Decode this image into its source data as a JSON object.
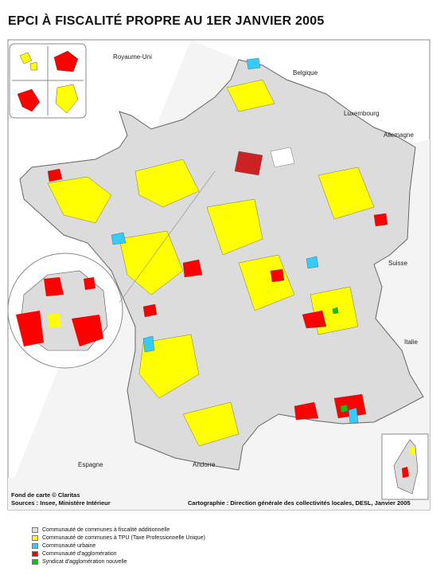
{
  "title": "EPCI À FISCALITÉ PROPRE AU 1ER JANVIER 2005",
  "map": {
    "labels": [
      "Royaume-Uni",
      "Belgique",
      "Luxembourg",
      "Allemagne",
      "Suisse",
      "Italie",
      "Espagne",
      "Andorre"
    ]
  },
  "credits": {
    "base_map": "Fond de carte © Claritas",
    "sources": "Sources : Insee, Ministère Intérieur",
    "cartography": "Cartographie : Direction générale des collectivités locales, DESL, Janvier 2005"
  },
  "legend": {
    "items": [
      {
        "label": "Communauté de communes à fiscalité additionnelle",
        "color": "#e0e0e0"
      },
      {
        "label": "Communauté de communes à TPU (Taxe Professionnelle Unique)",
        "color": "#ffff00"
      },
      {
        "label": "Communauté urbaine",
        "color": "#33ccff"
      },
      {
        "label": "Communauté d'agglomération",
        "color": "#ff0000"
      },
      {
        "label": "Syndicat d'agglomération nouvelle",
        "color": "#00cc00"
      }
    ]
  }
}
